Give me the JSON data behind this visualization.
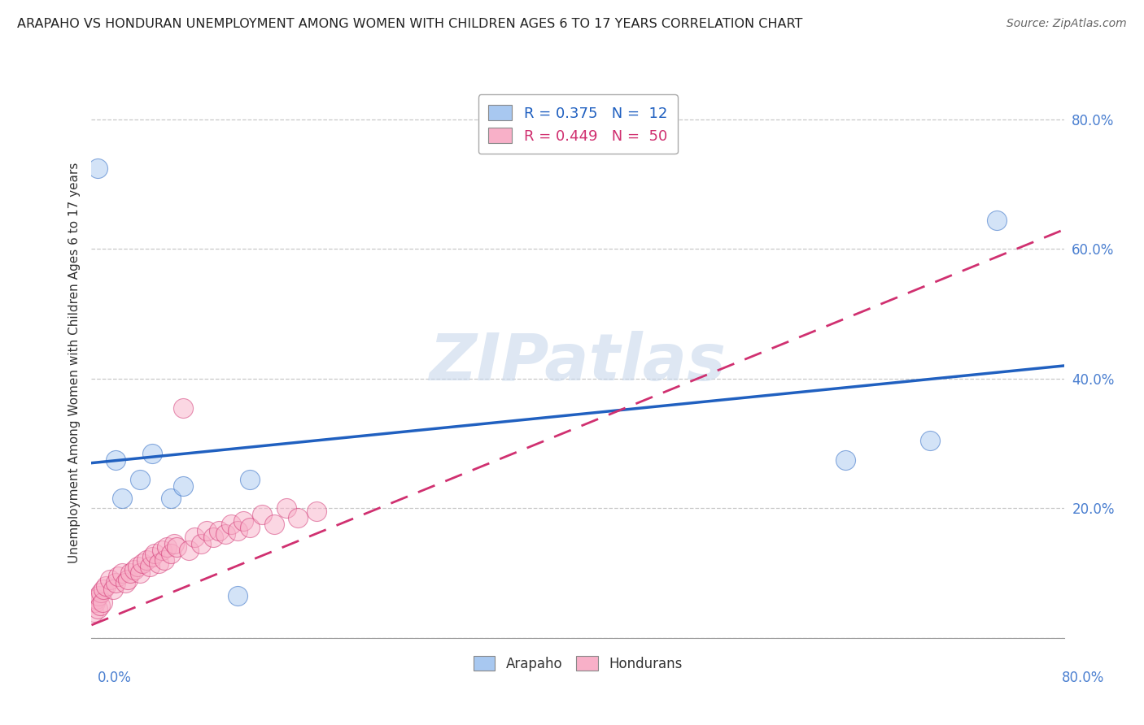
{
  "title": "ARAPAHO VS HONDURAN UNEMPLOYMENT AMONG WOMEN WITH CHILDREN AGES 6 TO 17 YEARS CORRELATION CHART",
  "source": "Source: ZipAtlas.com",
  "ylabel": "Unemployment Among Women with Children Ages 6 to 17 years",
  "arapaho_color": "#A8C8F0",
  "honduran_color": "#F8B0C8",
  "trend_arapaho_color": "#2060C0",
  "trend_honduran_color": "#D03070",
  "watermark_color": "#C8D8EC",
  "xmin": 0.0,
  "xmax": 0.8,
  "ymin": 0.0,
  "ymax": 0.85,
  "arapaho_x": [
    0.005,
    0.02,
    0.025,
    0.04,
    0.05,
    0.065,
    0.075,
    0.12,
    0.13,
    0.62,
    0.69,
    0.745
  ],
  "arapaho_y": [
    0.725,
    0.275,
    0.215,
    0.245,
    0.285,
    0.215,
    0.235,
    0.065,
    0.245,
    0.275,
    0.305,
    0.645
  ],
  "honduran_x": [
    0.002,
    0.003,
    0.004,
    0.005,
    0.006,
    0.007,
    0.008,
    0.009,
    0.01,
    0.012,
    0.015,
    0.018,
    0.02,
    0.022,
    0.025,
    0.028,
    0.03,
    0.032,
    0.035,
    0.038,
    0.04,
    0.042,
    0.045,
    0.048,
    0.05,
    0.052,
    0.055,
    0.058,
    0.06,
    0.062,
    0.065,
    0.068,
    0.07,
    0.075,
    0.08,
    0.085,
    0.09,
    0.095,
    0.1,
    0.105,
    0.11,
    0.115,
    0.12,
    0.125,
    0.13,
    0.14,
    0.15,
    0.16,
    0.17,
    0.185
  ],
  "honduran_y": [
    0.04,
    0.055,
    0.06,
    0.045,
    0.065,
    0.05,
    0.07,
    0.055,
    0.075,
    0.08,
    0.09,
    0.075,
    0.085,
    0.095,
    0.1,
    0.085,
    0.09,
    0.1,
    0.105,
    0.11,
    0.1,
    0.115,
    0.12,
    0.11,
    0.125,
    0.13,
    0.115,
    0.135,
    0.12,
    0.14,
    0.13,
    0.145,
    0.14,
    0.355,
    0.135,
    0.155,
    0.145,
    0.165,
    0.155,
    0.165,
    0.16,
    0.175,
    0.165,
    0.18,
    0.17,
    0.19,
    0.175,
    0.2,
    0.185,
    0.195
  ],
  "background_color": "#FFFFFF",
  "grid_color": "#BBBBBB"
}
